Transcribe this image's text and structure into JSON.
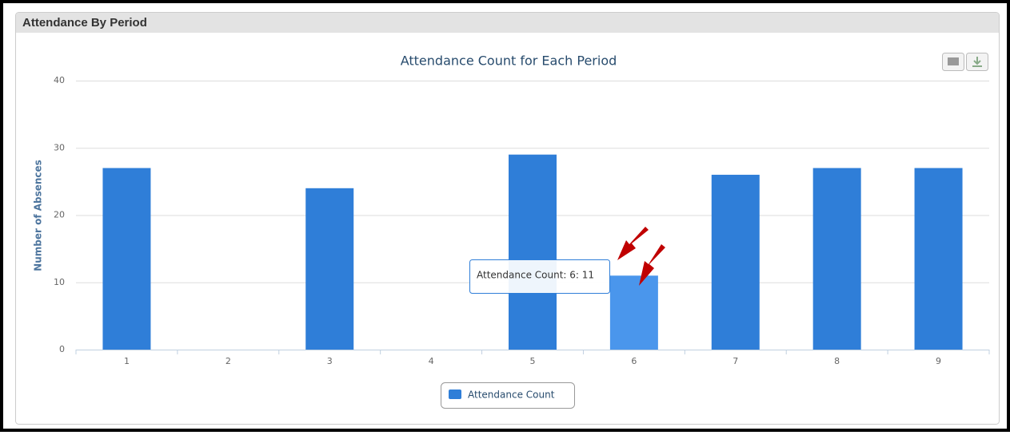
{
  "panel": {
    "title": "Attendance By Period"
  },
  "chart_data": {
    "type": "bar",
    "title": "Attendance Count for Each Period",
    "y_label": "Number of Absences",
    "categories": [
      "1",
      "2",
      "3",
      "4",
      "5",
      "6",
      "7",
      "8",
      "9"
    ],
    "series": [
      {
        "name": "Attendance Count",
        "color": "#2f7ed8",
        "values": [
          27,
          0,
          24,
          0,
          29,
          11,
          26,
          27,
          27
        ]
      }
    ],
    "ylim": [
      0,
      40
    ],
    "yticks": [
      0,
      10,
      20,
      30,
      40
    ],
    "grid": true,
    "hover": {
      "index": 5,
      "color": "#4a96ec"
    },
    "tooltip": "Attendance Count: 6: 11"
  }
}
